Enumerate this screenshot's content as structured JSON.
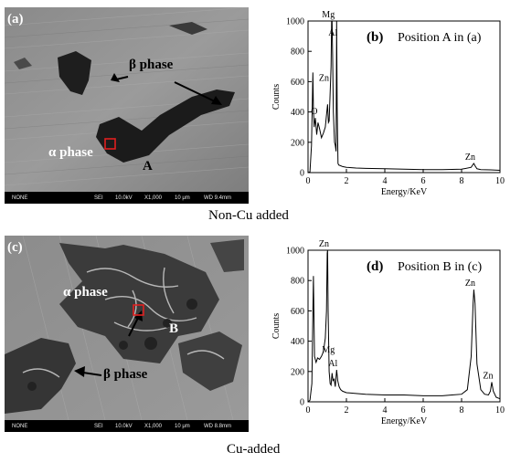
{
  "figure": {
    "panel_a": {
      "label": "(a)",
      "beta_label": "β phase",
      "alpha_label": "α phase",
      "point_label": "A",
      "sem_bar": {
        "mode": "NONE",
        "detector": "SEI",
        "voltage": "10.0kV",
        "mag": "X1,000",
        "scale": "10 μm",
        "wd": "WD 9.4mm"
      }
    },
    "panel_c": {
      "label": "(c)",
      "alpha_label": "α phase",
      "beta_label": "β phase",
      "point_label": "B",
      "sem_bar": {
        "mode": "NONE",
        "detector": "SEI",
        "voltage": "10.0kV",
        "mag": "X1,000",
        "scale": "10 μm",
        "wd": "WD 8.8mm"
      }
    },
    "caption_top": "Non-Cu added",
    "caption_bottom": "Cu-added"
  },
  "chart_data": [
    {
      "type": "line",
      "panel": "(b)",
      "title": "Position A in (a)",
      "xlabel": "Energy/KeV",
      "ylabel": "Counts",
      "xlim": [
        0,
        10
      ],
      "ylim": [
        0,
        1000
      ],
      "xticks": [
        0,
        2,
        4,
        6,
        8,
        10
      ],
      "yticks": [
        0,
        200,
        400,
        600,
        800,
        1000
      ],
      "grid": false,
      "annotations": [
        {
          "text": "Mg",
          "x": 1.25,
          "y": 1000
        },
        {
          "text": "Al",
          "x": 1.49,
          "y": 880
        },
        {
          "text": "Zn",
          "x": 1.02,
          "y": 580
        },
        {
          "text": "O",
          "x": 0.52,
          "y": 360
        },
        {
          "text": "Zn",
          "x": 8.64,
          "y": 60
        }
      ],
      "series": [
        {
          "x": [
            0,
            0.1,
            0.18,
            0.25,
            0.28,
            0.32,
            0.38,
            0.45,
            0.52,
            0.6,
            0.7,
            0.8,
            0.9,
            0.96,
            1.02,
            1.06,
            1.1,
            1.16,
            1.2,
            1.23,
            1.25,
            1.28,
            1.32,
            1.38,
            1.42,
            1.46,
            1.49,
            1.52,
            1.56,
            1.6,
            1.7,
            1.8,
            2.0,
            2.5,
            3.0,
            4.0,
            5.0,
            6.0,
            7.0,
            8.0,
            8.5,
            8.6,
            8.64,
            8.7,
            8.8,
            9.0,
            9.5,
            10.0
          ],
          "y": [
            0,
            5,
            180,
            660,
            420,
            300,
            360,
            250,
            330,
            290,
            230,
            260,
            300,
            380,
            450,
            330,
            340,
            560,
            700,
            1000,
            1000,
            780,
            400,
            200,
            180,
            140,
            1000,
            420,
            60,
            50,
            45,
            40,
            35,
            30,
            28,
            25,
            22,
            20,
            20,
            22,
            35,
            55,
            60,
            45,
            25,
            20,
            18,
            15
          ]
        }
      ]
    },
    {
      "type": "line",
      "panel": "(d)",
      "title": "Position B in (c)",
      "xlabel": "Energy/KeV",
      "ylabel": "Counts",
      "xlim": [
        0,
        10
      ],
      "ylim": [
        0,
        1000
      ],
      "xticks": [
        0,
        2,
        4,
        6,
        8,
        10
      ],
      "yticks": [
        0,
        200,
        400,
        600,
        800,
        1000
      ],
      "grid": false,
      "annotations": [
        {
          "text": "Zn",
          "x": 1.02,
          "y": 1000
        },
        {
          "text": "Mg",
          "x": 1.25,
          "y": 300
        },
        {
          "text": "Al",
          "x": 1.49,
          "y": 210
        },
        {
          "text": "Zn",
          "x": 8.64,
          "y": 740
        },
        {
          "text": "Zn",
          "x": 9.57,
          "y": 130
        }
      ],
      "series": [
        {
          "x": [
            0,
            0.1,
            0.2,
            0.28,
            0.34,
            0.42,
            0.5,
            0.6,
            0.7,
            0.8,
            0.9,
            0.96,
            1.0,
            1.02,
            1.05,
            1.1,
            1.15,
            1.2,
            1.25,
            1.3,
            1.36,
            1.42,
            1.49,
            1.55,
            1.62,
            1.7,
            1.8,
            2.0,
            2.5,
            3.0,
            4.0,
            5.0,
            6.0,
            7.0,
            7.5,
            8.0,
            8.3,
            8.5,
            8.6,
            8.64,
            8.7,
            8.8,
            9.0,
            9.2,
            9.4,
            9.5,
            9.57,
            9.65,
            9.8,
            10.0
          ],
          "y": [
            0,
            10,
            120,
            830,
            300,
            260,
            290,
            280,
            300,
            330,
            420,
            600,
            980,
            1000,
            600,
            200,
            120,
            110,
            190,
            140,
            150,
            100,
            210,
            140,
            100,
            80,
            70,
            60,
            55,
            50,
            45,
            45,
            40,
            40,
            45,
            50,
            80,
            300,
            650,
            740,
            650,
            250,
            80,
            50,
            45,
            70,
            130,
            70,
            30,
            20
          ]
        }
      ]
    }
  ]
}
